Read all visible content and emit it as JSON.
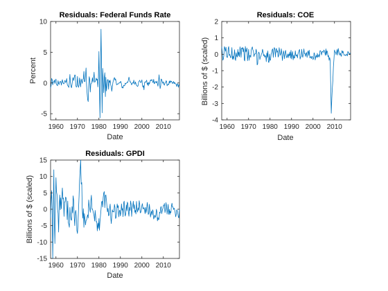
{
  "figure": {
    "background": "#ffffff",
    "line_color": "#0072bd",
    "axes_color": "#262626"
  },
  "chart_data": [
    {
      "type": "line",
      "title": "Residuals: Federal Funds Rate",
      "xlabel": "Date",
      "ylabel": "Percent",
      "xlim": [
        1957.5,
        2017.5
      ],
      "ylim": [
        -6,
        10
      ],
      "xticks": [
        1960,
        1970,
        1980,
        1990,
        2000,
        2010
      ],
      "yticks": [
        -5,
        0,
        5,
        10
      ],
      "grid": false,
      "shape": [
        [
          1957.5,
          -1.0
        ],
        [
          1958,
          0.6
        ],
        [
          1958.5,
          -0.5
        ],
        [
          1959,
          0.5
        ],
        [
          1959.5,
          -0.3
        ],
        [
          1960,
          0.4
        ],
        [
          1960.5,
          -0.6
        ],
        [
          1961,
          0.3
        ],
        [
          1962,
          -0.2
        ],
        [
          1963,
          0.3
        ],
        [
          1964,
          -0.1
        ],
        [
          1965,
          0.4
        ],
        [
          1966,
          -0.6
        ],
        [
          1966.5,
          0.9
        ],
        [
          1967,
          -0.8
        ],
        [
          1968,
          0.5
        ],
        [
          1969,
          1.0
        ],
        [
          1969.5,
          -0.8
        ],
        [
          1970,
          0.8
        ],
        [
          1970.5,
          -1.0
        ],
        [
          1971,
          1.0
        ],
        [
          1971.5,
          -0.5
        ],
        [
          1972,
          0.4
        ],
        [
          1973,
          1.6
        ],
        [
          1973.5,
          0.6
        ],
        [
          1974,
          2.6
        ],
        [
          1974.5,
          -2.2
        ],
        [
          1975,
          -3.1
        ],
        [
          1975.5,
          0.8
        ],
        [
          1976,
          -0.5
        ],
        [
          1977,
          0.5
        ],
        [
          1978,
          0.8
        ],
        [
          1978.5,
          -0.5
        ],
        [
          1979,
          1.6
        ],
        [
          1979.5,
          -1.2
        ],
        [
          1980,
          3.6
        ],
        [
          1980.3,
          -2.5
        ],
        [
          1980.6,
          -5.7
        ],
        [
          1980.9,
          7.7
        ],
        [
          1981.2,
          4.0
        ],
        [
          1981.5,
          -3.5
        ],
        [
          1981.8,
          3.2
        ],
        [
          1982.2,
          -3.8
        ],
        [
          1982.6,
          2.0
        ],
        [
          1983,
          -0.8
        ],
        [
          1984,
          0.6
        ],
        [
          1984.5,
          -0.7
        ],
        [
          1985,
          0.4
        ],
        [
          1986,
          -0.8
        ],
        [
          1987,
          0.4
        ],
        [
          1988,
          0.3
        ],
        [
          1989,
          -0.3
        ],
        [
          1990,
          0.1
        ],
        [
          1991,
          -0.7
        ],
        [
          1992,
          -0.3
        ],
        [
          1993,
          0.2
        ],
        [
          1994,
          0.6
        ],
        [
          1995,
          -0.3
        ],
        [
          1996,
          0.2
        ],
        [
          1997,
          0.1
        ],
        [
          1998,
          -0.3
        ],
        [
          1999,
          0.3
        ],
        [
          2000,
          0.2
        ],
        [
          2001,
          -1.0
        ],
        [
          2001.5,
          0.4
        ],
        [
          2002,
          0.2
        ],
        [
          2003,
          -0.3
        ],
        [
          2004,
          0.3
        ],
        [
          2005,
          0.4
        ],
        [
          2006,
          0.3
        ],
        [
          2007,
          0.1
        ],
        [
          2007.5,
          -0.6
        ],
        [
          2008,
          1.4
        ],
        [
          2008.5,
          -1.0
        ],
        [
          2009,
          0.3
        ],
        [
          2010,
          -0.1
        ],
        [
          2011,
          0.1
        ],
        [
          2012,
          -0.2
        ],
        [
          2013,
          0.1
        ],
        [
          2014,
          -0.1
        ],
        [
          2015,
          0.0
        ],
        [
          2016,
          -0.3
        ],
        [
          2017,
          -0.4
        ],
        [
          2017.5,
          -0.3
        ]
      ],
      "noise": [
        [
          1957.5,
          0.5
        ],
        [
          1966,
          0.5
        ],
        [
          1972,
          0.8
        ],
        [
          1979,
          1.2
        ],
        [
          1980,
          2.5
        ],
        [
          1982.5,
          2.0
        ],
        [
          1985,
          0.6
        ],
        [
          1990,
          0.4
        ],
        [
          2000,
          0.35
        ],
        [
          2007,
          0.5
        ],
        [
          2009,
          0.4
        ],
        [
          2017.5,
          0.3
        ]
      ]
    },
    {
      "type": "line",
      "title": "Residuals: COE",
      "xlabel": "Date",
      "ylabel": "Billions of $ (scaled)",
      "xlim": [
        1957.5,
        2017.5
      ],
      "ylim": [
        -4,
        2
      ],
      "xticks": [
        1960,
        1970,
        1980,
        1990,
        2000,
        2010
      ],
      "yticks": [
        -4,
        -3,
        -2,
        -1,
        0,
        1,
        2
      ],
      "grid": false,
      "shape": [
        [
          1957.5,
          0.1
        ],
        [
          1958,
          -0.3
        ],
        [
          1959,
          0.3
        ],
        [
          1960,
          0.1
        ],
        [
          1962,
          0.0
        ],
        [
          1964,
          0.1
        ],
        [
          1966,
          0.2
        ],
        [
          1968,
          0.1
        ],
        [
          1970,
          -0.1
        ],
        [
          1972,
          0.1
        ],
        [
          1974,
          -0.2
        ],
        [
          1976,
          0.1
        ],
        [
          1978,
          0.0
        ],
        [
          1980,
          -0.3
        ],
        [
          1982,
          0.1
        ],
        [
          1984,
          0.2
        ],
        [
          1986,
          -0.1
        ],
        [
          1988,
          0.1
        ],
        [
          1990,
          -0.1
        ],
        [
          1992,
          0.1
        ],
        [
          1994,
          0.0
        ],
        [
          1996,
          0.1
        ],
        [
          1998,
          0.0
        ],
        [
          2000,
          -0.2
        ],
        [
          2002,
          0.0
        ],
        [
          2004,
          0.1
        ],
        [
          2006,
          0.1
        ],
        [
          2008,
          -0.3
        ],
        [
          2008.5,
          -3.4
        ],
        [
          2009,
          -2.2
        ],
        [
          2009.5,
          -0.6
        ],
        [
          2010,
          0.1
        ],
        [
          2012,
          0.2
        ],
        [
          2014,
          0.0
        ],
        [
          2016,
          0.1
        ],
        [
          2017.5,
          0.0
        ]
      ],
      "noise": [
        [
          1957.5,
          0.4
        ],
        [
          1965,
          0.5
        ],
        [
          1975,
          0.45
        ],
        [
          1985,
          0.35
        ],
        [
          1995,
          0.3
        ],
        [
          2005,
          0.25
        ],
        [
          2017.5,
          0.2
        ]
      ]
    },
    {
      "type": "line",
      "title": "Residuals: GPDI",
      "xlabel": "Date",
      "ylabel": "Billions of $ (scaled)",
      "xlim": [
        1957.5,
        2017.5
      ],
      "ylim": [
        -15,
        15
      ],
      "xticks": [
        1960,
        1970,
        1980,
        1990,
        2000,
        2010
      ],
      "yticks": [
        -15,
        -10,
        -5,
        0,
        5,
        10,
        15
      ],
      "grid": false,
      "shape": [
        [
          1957.5,
          0.0
        ],
        [
          1958,
          8.5
        ],
        [
          1958.5,
          -11.0
        ],
        [
          1959,
          9.0
        ],
        [
          1959.5,
          -10.0
        ],
        [
          1960,
          10.0
        ],
        [
          1961,
          -5.0
        ],
        [
          1962,
          4.0
        ],
        [
          1964,
          0.5
        ],
        [
          1966,
          -2.0
        ],
        [
          1968,
          1.0
        ],
        [
          1970,
          -6.0
        ],
        [
          1971.5,
          13.0
        ],
        [
          1972.5,
          -2.0
        ],
        [
          1974,
          -4.0
        ],
        [
          1976,
          2.0
        ],
        [
          1978,
          -1.0
        ],
        [
          1980,
          -6.0
        ],
        [
          1982,
          4.0
        ],
        [
          1984,
          0.0
        ],
        [
          1986,
          -2.0
        ],
        [
          1990,
          0.5
        ],
        [
          1995,
          0.0
        ],
        [
          2000,
          1.0
        ],
        [
          2005,
          -1.0
        ],
        [
          2008,
          -2.5
        ],
        [
          2010,
          0.5
        ],
        [
          2014,
          0.0
        ],
        [
          2017.5,
          -1.0
        ]
      ],
      "noise": [
        [
          1957.5,
          5.0
        ],
        [
          1965,
          4.0
        ],
        [
          1975,
          3.5
        ],
        [
          1985,
          3.0
        ],
        [
          1995,
          2.5
        ],
        [
          2005,
          2.0
        ],
        [
          2017.5,
          1.8
        ]
      ]
    }
  ]
}
